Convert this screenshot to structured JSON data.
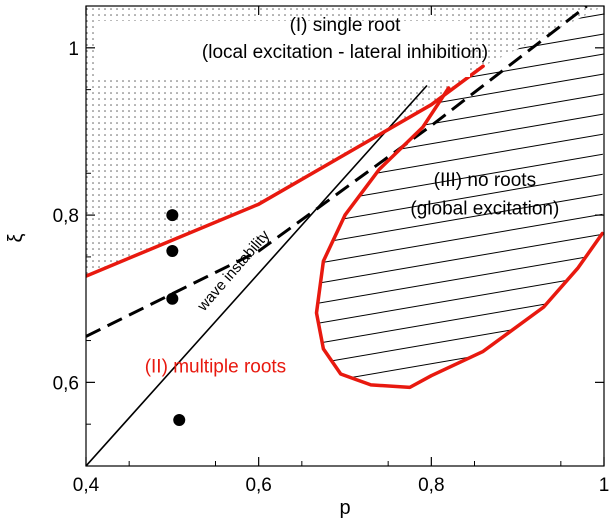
{
  "chart_data": {
    "type": "line",
    "title": "",
    "xlabel": "p",
    "ylabel": "ξ",
    "xlim": [
      0.4,
      1.0
    ],
    "ylim": [
      0.5,
      1.05
    ],
    "x_ticks": [
      {
        "value": 0.4,
        "label": "0,4"
      },
      {
        "value": 0.6,
        "label": "0,6"
      },
      {
        "value": 0.8,
        "label": "0,8"
      },
      {
        "value": 1.0,
        "label": "1"
      }
    ],
    "y_ticks": [
      {
        "value": 0.6,
        "label": "0,6"
      },
      {
        "value": 0.8,
        "label": "0,8"
      },
      {
        "value": 1.0,
        "label": "1"
      }
    ],
    "colors": {
      "boundary": "#e8190f",
      "line": "#000000",
      "dots": "#000000"
    },
    "series": [
      {
        "id": "boundary-upper",
        "style": "solid-red",
        "points": [
          [
            0.4,
            0.727
          ],
          [
            0.6,
            0.813
          ],
          [
            0.8,
            0.932
          ],
          [
            0.86,
            0.978
          ]
        ]
      },
      {
        "id": "boundary-inner",
        "style": "solid-red",
        "points": [
          [
            0.82,
            0.952
          ],
          [
            0.79,
            0.905
          ],
          [
            0.74,
            0.855
          ],
          [
            0.7,
            0.8
          ],
          [
            0.675,
            0.745
          ],
          [
            0.667,
            0.683
          ],
          [
            0.675,
            0.64
          ],
          [
            0.695,
            0.61
          ],
          [
            0.73,
            0.597
          ],
          [
            0.775,
            0.594
          ],
          [
            0.8,
            0.608
          ],
          [
            0.86,
            0.637
          ],
          [
            0.93,
            0.69
          ],
          [
            0.97,
            0.737
          ],
          [
            0.998,
            0.778
          ]
        ]
      },
      {
        "id": "wave-line",
        "style": "solid-thin-black",
        "points": [
          [
            0.4,
            0.5
          ],
          [
            0.795,
            0.955
          ]
        ]
      },
      {
        "id": "dashed-line",
        "style": "dashed-black",
        "points": [
          [
            0.4,
            0.655
          ],
          [
            0.6,
            0.757
          ],
          [
            0.8,
            0.907
          ],
          [
            0.98,
            1.05
          ]
        ]
      },
      {
        "id": "dots",
        "style": "dots",
        "points": [
          [
            0.5,
            0.8
          ],
          [
            0.5,
            0.757
          ],
          [
            0.5,
            0.7
          ],
          [
            0.508,
            0.555
          ]
        ]
      }
    ],
    "annotations": [
      {
        "id": "region-one-title",
        "text": "(I) single root",
        "x": 0.7,
        "y": 1.02,
        "color": "black"
      },
      {
        "id": "region-one-subtitle",
        "text": "(local excitation - lateral inhibition)",
        "x": 0.7,
        "y": 0.988,
        "color": "black"
      },
      {
        "id": "region-three-title",
        "text": "(III) no roots",
        "x": 0.862,
        "y": 0.835,
        "color": "black"
      },
      {
        "id": "region-three-subtitle",
        "text": "(global excitation)",
        "x": 0.862,
        "y": 0.801,
        "color": "black"
      },
      {
        "id": "region-two-label",
        "text": "(II) multiple roots",
        "x": 0.468,
        "y": 0.612,
        "color": "red"
      },
      {
        "id": "wave-instability-label",
        "text": "wave instability",
        "x": 0.575,
        "y": 0.73,
        "color": "black",
        "rotation": -49
      }
    ]
  }
}
